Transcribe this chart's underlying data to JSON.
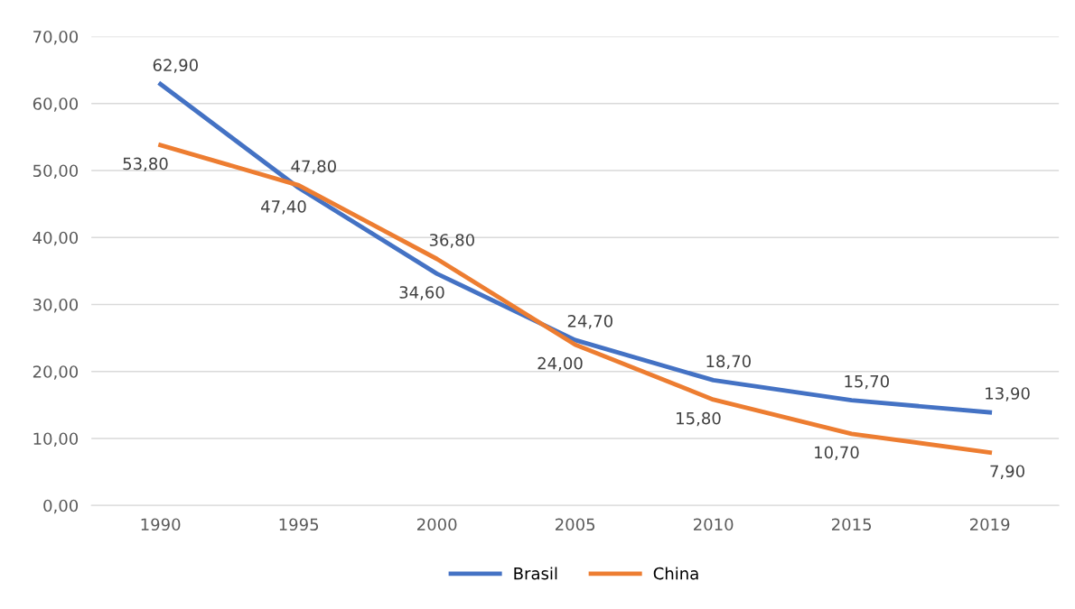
{
  "chart_data": {
    "type": "line",
    "categories": [
      "1990",
      "1995",
      "2000",
      "2005",
      "2010",
      "2015",
      "2019"
    ],
    "series": [
      {
        "name": "Brasil",
        "color": "#4472c4",
        "values": [
          62.9,
          47.4,
          34.6,
          24.7,
          18.7,
          15.7,
          13.9
        ],
        "value_labels": [
          "62,90",
          "47,40",
          "34,60",
          "24,70",
          "18,70",
          "15,70",
          "13,90"
        ]
      },
      {
        "name": "China",
        "color": "#ed7d31",
        "values": [
          53.8,
          47.8,
          36.8,
          24.0,
          15.8,
          10.7,
          7.9
        ],
        "value_labels": [
          "53,80",
          "47,80",
          "36,80",
          "24,00",
          "15,80",
          "10,70",
          "7,90"
        ]
      }
    ],
    "ylim": [
      0,
      70
    ],
    "yticks": [
      {
        "value": 0,
        "label": "0,00"
      },
      {
        "value": 10,
        "label": "10,00"
      },
      {
        "value": 20,
        "label": "20,00"
      },
      {
        "value": 30,
        "label": "30,00"
      },
      {
        "value": 40,
        "label": "40,00"
      },
      {
        "value": 50,
        "label": "50,00"
      },
      {
        "value": 60,
        "label": "60,00"
      },
      {
        "value": 70,
        "label": "70,00"
      }
    ],
    "grid": "y",
    "legend": "bottom",
    "marker": "none",
    "line_style": "solid"
  }
}
